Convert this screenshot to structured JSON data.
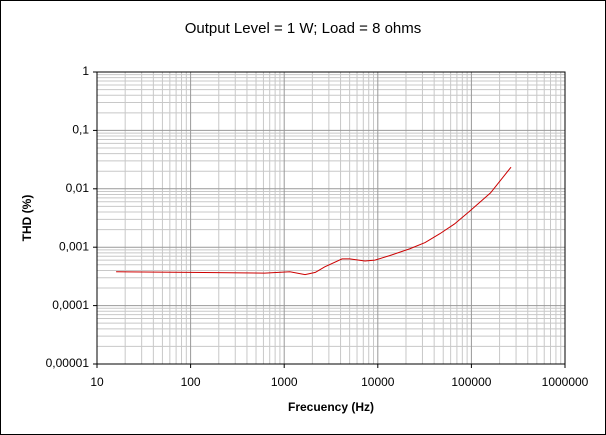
{
  "chart_data": {
    "type": "line",
    "title": "Output Level = 1 W; Load = 8 ohms",
    "xlabel": "Frecuency (Hz)",
    "ylabel": "THD (%)",
    "x": [
      16,
      100,
      620,
      1150,
      1670,
      2150,
      2700,
      4150,
      5000,
      7300,
      9300,
      13500,
      22000,
      32000,
      46000,
      66000,
      97000,
      160000,
      265000
    ],
    "values": [
      0.00038,
      0.00037,
      0.00036,
      0.00038,
      0.00034,
      0.00037,
      0.00046,
      0.00063,
      0.00063,
      0.00058,
      0.0006,
      0.00072,
      0.00094,
      0.0012,
      0.0017,
      0.0025,
      0.0042,
      0.0085,
      0.0235
    ],
    "color": "#cc0000",
    "xlim": [
      10,
      1000000
    ],
    "xticks": [
      10,
      100,
      1000,
      10000,
      100000,
      1000000
    ],
    "ylim": [
      1e-05,
      1
    ],
    "yticks": [
      {
        "value": 1e-05,
        "label": "0,00001"
      },
      {
        "value": 0.0001,
        "label": "0,0001"
      },
      {
        "value": 0.001,
        "label": "0,001"
      },
      {
        "value": 0.01,
        "label": "0,01"
      },
      {
        "value": 0.1,
        "label": "0,1"
      },
      1
    ],
    "xscale": "log",
    "yscale": "log",
    "grid": true,
    "minor_grid": true
  }
}
